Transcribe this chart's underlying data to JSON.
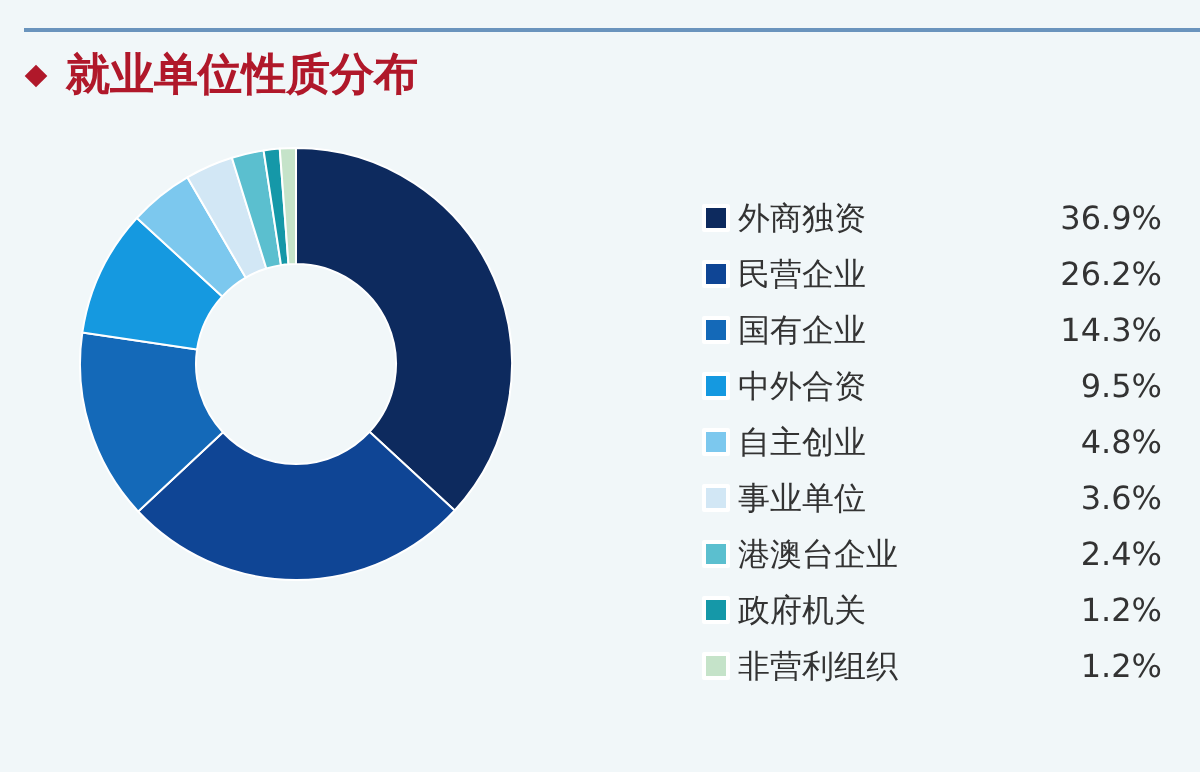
{
  "chart_data": {
    "type": "donut",
    "title": "就业单位性质分布",
    "categories": [
      "外商独资",
      "民营企业",
      "国有企业",
      "中外合资",
      "自主创业",
      "事业单位",
      "港澳台企业",
      "政府机关",
      "非营利组织"
    ],
    "values": [
      36.9,
      26.2,
      14.3,
      9.5,
      4.8,
      3.6,
      2.4,
      1.2,
      1.2
    ],
    "colors": [
      "#0d2a5e",
      "#0f4595",
      "#1469b8",
      "#1599e0",
      "#7cc8ee",
      "#d2e7f5",
      "#5bbfcf",
      "#1598a8",
      "#c5e3c9"
    ],
    "value_labels": [
      "36.9%",
      "26.2%",
      "14.3%",
      "9.5%",
      "4.8%",
      "3.6%",
      "2.4%",
      "1.2%",
      "1.2%"
    ],
    "legend": "right"
  }
}
